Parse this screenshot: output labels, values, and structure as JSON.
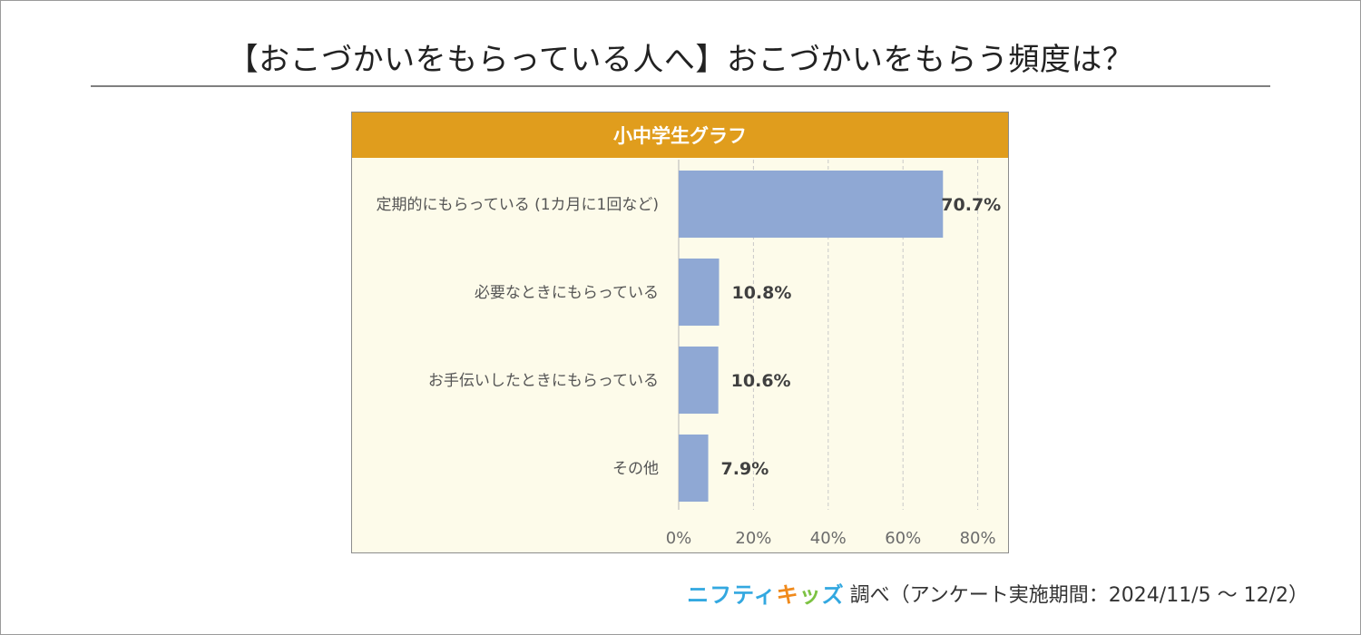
{
  "title": "【おこづかいをもらっている人へ】おこづかいをもらう頻度は？",
  "chart_header": "小中学生グラフ",
  "colors": {
    "header": "#e09d1d",
    "bar": "#8fa8d4",
    "plot_background": "#fdfbea",
    "brand_blue": "#33a8e0",
    "brand_orange": "#f08a1c",
    "brand_green": "#7cc242"
  },
  "chart_data": {
    "type": "bar",
    "orientation": "horizontal",
    "categories": [
      "定期的にもらっている (1カ月に1回など)",
      "必要なときにもらっている",
      "お手伝いしたときにもらっている",
      "その他"
    ],
    "values": [
      70.7,
      10.8,
      10.6,
      7.9
    ],
    "value_labels": [
      "70.7%",
      "10.8%",
      "10.6%",
      "7.9%"
    ],
    "xlim": [
      0,
      80
    ],
    "xticks": [
      0,
      20,
      40,
      60,
      80
    ],
    "xtick_labels": [
      "0%",
      "20%",
      "40%",
      "60%",
      "80%"
    ],
    "grid": "vertical-dashed",
    "legend": "none"
  },
  "footer": {
    "brand_part1": "ニフティ",
    "brand_part2": "キッズ",
    "text": "調べ（アンケート実施期間：2024/11/5 ～ 12/2）"
  }
}
